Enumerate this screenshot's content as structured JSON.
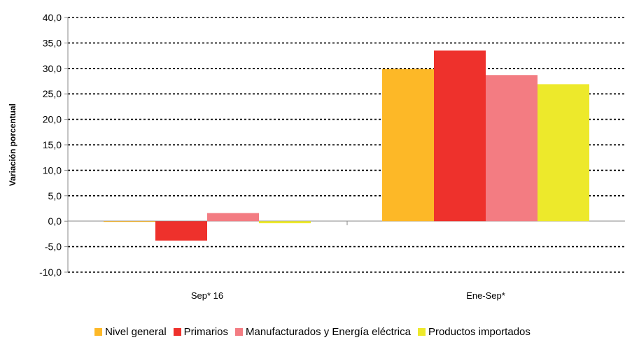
{
  "chart_data": {
    "type": "bar",
    "title": "",
    "xlabel": "",
    "ylabel": "Variación porcentual",
    "ylim": [
      -10,
      40
    ],
    "ytick_step": 5,
    "ytick_labels": [
      "-10,0",
      "-5,0",
      "0,0",
      "5,0",
      "10,0",
      "15,0",
      "20,0",
      "25,0",
      "30,0",
      "35,0",
      "40,0"
    ],
    "categories": [
      "Sep* 16",
      "Ene-Sep*"
    ],
    "grid": true,
    "legend_position": "bottom",
    "series": [
      {
        "name": "Nivel general",
        "color": "#FDB827",
        "values": [
          -0.1,
          29.9
        ]
      },
      {
        "name": "Primarios",
        "color": "#EE312C",
        "values": [
          -3.8,
          33.5
        ]
      },
      {
        "name": "Manufacturados y Energía eléctrica",
        "color": "#F37C82",
        "values": [
          1.6,
          28.7
        ]
      },
      {
        "name": "Productos importados",
        "color": "#EDE92B",
        "values": [
          -0.4,
          26.9
        ]
      }
    ]
  }
}
